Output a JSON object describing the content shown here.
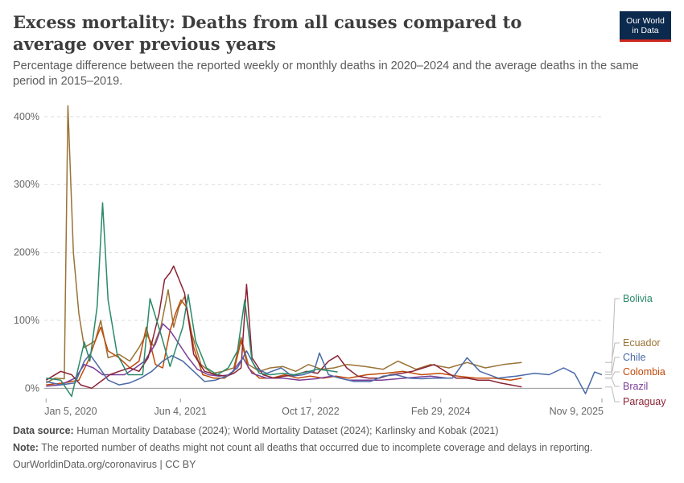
{
  "header": {
    "title": "Excess mortality: Deaths from all causes compared to average over previous years",
    "subtitle": "Percentage difference between the reported weekly or monthly deaths in 2020–2024 and the average deaths in the same period in 2015–2019.",
    "logo_line1": "Our World",
    "logo_line2": "in Data"
  },
  "footer": {
    "source_label": "Data source:",
    "source_text": "Human Mortality Database (2024); World Mortality Dataset (2024); Karlinsky and Kobak (2021)",
    "note_label": "Note:",
    "note_text": "The reported number of deaths might not count all deaths that occurred due to incomplete coverage and delays in reporting.",
    "credit": "OurWorldinData.org/coronavirus | CC BY"
  },
  "colors": {
    "Bolivia": "#2a8a6a",
    "Ecuador": "#9a7336",
    "Chile": "#4a6aa8",
    "Colombia": "#c04a08",
    "Brazil": "#7a3e99",
    "Paraguay": "#8a2234"
  },
  "chart_data": {
    "type": "line",
    "title": "Excess mortality: Deaths from all causes compared to average over previous years",
    "y_unit": "%",
    "ylim": [
      -15,
      420
    ],
    "y_ticks": [
      0,
      100,
      200,
      300,
      400
    ],
    "y_tick_labels": [
      "0%",
      "100%",
      "200%",
      "300%",
      "400%"
    ],
    "x_ticks": [
      "2020-01-05",
      "2021-06-04",
      "2022-10-17",
      "2024-02-29",
      "2025-11-09"
    ],
    "x_tick_labels": [
      "Jan 5, 2020",
      "Jun 4, 2021",
      "Oct 17, 2022",
      "Feb 29, 2024",
      "Nov 9, 2025"
    ],
    "xlim": [
      "2019-12-29",
      "2025-11-09"
    ],
    "grid": "horizontal dashed",
    "legend": "right, labels at line ends",
    "series": [
      {
        "name": "Bolivia",
        "points": [
          [
            "2020-01-05",
            15
          ],
          [
            "2020-03-01",
            12
          ],
          [
            "2020-04-12",
            -12
          ],
          [
            "2020-05-31",
            68
          ],
          [
            "2020-06-21",
            40
          ],
          [
            "2020-07-19",
            120
          ],
          [
            "2020-08-09",
            273
          ],
          [
            "2020-08-30",
            130
          ],
          [
            "2020-10-04",
            50
          ],
          [
            "2020-11-15",
            20
          ],
          [
            "2021-01-10",
            20
          ],
          [
            "2021-02-07",
            132
          ],
          [
            "2021-03-21",
            80
          ],
          [
            "2021-04-25",
            32
          ],
          [
            "2021-06-13",
            90
          ],
          [
            "2021-07-04",
            138
          ],
          [
            "2021-08-01",
            70
          ],
          [
            "2021-09-12",
            30
          ],
          [
            "2021-10-24",
            20
          ],
          [
            "2021-12-05",
            30
          ],
          [
            "2022-01-09",
            55
          ],
          [
            "2022-02-06",
            130
          ],
          [
            "2022-03-06",
            40
          ],
          [
            "2022-04-03",
            22
          ],
          [
            "2022-05-15",
            20
          ],
          [
            "2022-07-03",
            22
          ],
          [
            "2022-08-14",
            20
          ],
          [
            "2022-10-02",
            24
          ],
          [
            "2022-11-13",
            28
          ],
          [
            "2022-12-25",
            26
          ],
          [
            "2023-01-29",
            24
          ]
        ]
      },
      {
        "name": "Ecuador",
        "points": [
          [
            "2020-01-05",
            8
          ],
          [
            "2020-02-09",
            15
          ],
          [
            "2020-03-15",
            14
          ],
          [
            "2020-03-29",
            416
          ],
          [
            "2020-04-19",
            200
          ],
          [
            "2020-05-10",
            110
          ],
          [
            "2020-05-31",
            60
          ],
          [
            "2020-07-12",
            70
          ],
          [
            "2020-08-02",
            100
          ],
          [
            "2020-08-30",
            45
          ],
          [
            "2020-10-11",
            50
          ],
          [
            "2020-11-22",
            40
          ],
          [
            "2020-12-27",
            60
          ],
          [
            "2021-01-24",
            80
          ],
          [
            "2021-02-21",
            62
          ],
          [
            "2021-03-21",
            90
          ],
          [
            "2021-04-18",
            145
          ],
          [
            "2021-05-09",
            90
          ],
          [
            "2021-05-30",
            120
          ],
          [
            "2021-06-20",
            135
          ],
          [
            "2021-07-18",
            80
          ],
          [
            "2021-08-22",
            35
          ],
          [
            "2021-10-03",
            22
          ],
          [
            "2021-11-14",
            25
          ],
          [
            "2021-12-26",
            30
          ],
          [
            "2022-01-23",
            75
          ],
          [
            "2022-02-20",
            35
          ],
          [
            "2022-04-03",
            25
          ],
          [
            "2022-05-15",
            30
          ],
          [
            "2022-07-03",
            32
          ],
          [
            "2022-08-21",
            25
          ],
          [
            "2022-10-09",
            35
          ],
          [
            "2022-11-27",
            28
          ],
          [
            "2023-01-15",
            30
          ],
          [
            "2023-03-05",
            35
          ],
          [
            "2023-05-14",
            32
          ],
          [
            "2023-07-23",
            28
          ],
          [
            "2023-09-17",
            40
          ],
          [
            "2023-11-26",
            28
          ],
          [
            "2024-01-21",
            35
          ],
          [
            "2024-03-31",
            30
          ],
          [
            "2024-06-09",
            38
          ],
          [
            "2024-08-18",
            30
          ],
          [
            "2024-10-27",
            35
          ],
          [
            "2025-01-05",
            38
          ]
        ]
      },
      {
        "name": "Chile",
        "points": [
          [
            "2020-01-05",
            10
          ],
          [
            "2020-03-01",
            5
          ],
          [
            "2020-04-26",
            8
          ],
          [
            "2020-05-31",
            40
          ],
          [
            "2020-06-21",
            50
          ],
          [
            "2020-07-19",
            35
          ],
          [
            "2020-08-30",
            12
          ],
          [
            "2020-10-11",
            5
          ],
          [
            "2020-11-22",
            8
          ],
          [
            "2021-01-03",
            15
          ],
          [
            "2021-02-14",
            25
          ],
          [
            "2021-03-28",
            40
          ],
          [
            "2021-05-02",
            48
          ],
          [
            "2021-06-13",
            40
          ],
          [
            "2021-07-25",
            25
          ],
          [
            "2021-09-05",
            10
          ],
          [
            "2021-10-17",
            12
          ],
          [
            "2021-11-28",
            18
          ],
          [
            "2022-01-09",
            30
          ],
          [
            "2022-02-13",
            55
          ],
          [
            "2022-03-20",
            30
          ],
          [
            "2022-05-01",
            22
          ],
          [
            "2022-06-26",
            30
          ],
          [
            "2022-08-07",
            18
          ],
          [
            "2022-09-18",
            20
          ],
          [
            "2022-10-30",
            25
          ],
          [
            "2022-11-20",
            52
          ],
          [
            "2022-12-25",
            20
          ],
          [
            "2023-02-05",
            15
          ],
          [
            "2023-04-02",
            10
          ],
          [
            "2023-06-04",
            10
          ],
          [
            "2023-07-23",
            18
          ],
          [
            "2023-09-10",
            20
          ],
          [
            "2023-10-29",
            15
          ],
          [
            "2023-12-17",
            14
          ],
          [
            "2024-02-04",
            15
          ],
          [
            "2024-04-14",
            15
          ],
          [
            "2024-06-09",
            45
          ],
          [
            "2024-07-28",
            25
          ],
          [
            "2024-10-06",
            15
          ],
          [
            "2024-12-15",
            18
          ],
          [
            "2025-02-23",
            22
          ],
          [
            "2025-04-20",
            20
          ],
          [
            "2025-06-15",
            30
          ],
          [
            "2025-07-27",
            22
          ],
          [
            "2025-09-07",
            -8
          ],
          [
            "2025-10-12",
            24
          ],
          [
            "2025-11-09",
            20
          ]
        ]
      },
      {
        "name": "Colombia",
        "points": [
          [
            "2020-01-05",
            5
          ],
          [
            "2020-03-15",
            8
          ],
          [
            "2020-05-10",
            12
          ],
          [
            "2020-06-14",
            40
          ],
          [
            "2020-07-12",
            70
          ],
          [
            "2020-08-02",
            90
          ],
          [
            "2020-08-30",
            55
          ],
          [
            "2020-10-11",
            45
          ],
          [
            "2020-11-22",
            30
          ],
          [
            "2020-12-27",
            40
          ],
          [
            "2021-01-24",
            90
          ],
          [
            "2021-02-28",
            35
          ],
          [
            "2021-03-28",
            30
          ],
          [
            "2021-04-25",
            85
          ],
          [
            "2021-05-16",
            110
          ],
          [
            "2021-06-06",
            130
          ],
          [
            "2021-06-27",
            120
          ],
          [
            "2021-07-25",
            60
          ],
          [
            "2021-08-29",
            20
          ],
          [
            "2021-10-10",
            15
          ],
          [
            "2021-11-21",
            15
          ],
          [
            "2021-12-26",
            25
          ],
          [
            "2022-01-23",
            70
          ],
          [
            "2022-02-20",
            30
          ],
          [
            "2022-04-03",
            15
          ],
          [
            "2022-05-22",
            15
          ],
          [
            "2022-07-10",
            20
          ],
          [
            "2022-08-28",
            15
          ],
          [
            "2022-10-16",
            18
          ],
          [
            "2022-12-04",
            15
          ],
          [
            "2023-01-22",
            18
          ],
          [
            "2023-03-12",
            15
          ],
          [
            "2023-05-21",
            20
          ],
          [
            "2023-07-30",
            22
          ],
          [
            "2023-10-08",
            25
          ],
          [
            "2023-12-17",
            20
          ],
          [
            "2024-02-25",
            22
          ],
          [
            "2024-05-05",
            18
          ],
          [
            "2024-07-14",
            15
          ],
          [
            "2024-09-22",
            15
          ],
          [
            "2024-11-24",
            12
          ],
          [
            "2025-01-05",
            15
          ]
        ]
      },
      {
        "name": "Brazil",
        "points": [
          [
            "2020-01-05",
            3
          ],
          [
            "2020-03-01",
            5
          ],
          [
            "2020-04-26",
            15
          ],
          [
            "2020-05-31",
            35
          ],
          [
            "2020-07-05",
            30
          ],
          [
            "2020-08-09",
            20
          ],
          [
            "2020-09-20",
            20
          ],
          [
            "2020-11-01",
            20
          ],
          [
            "2020-12-13",
            30
          ],
          [
            "2021-01-17",
            40
          ],
          [
            "2021-02-28",
            65
          ],
          [
            "2021-03-28",
            95
          ],
          [
            "2021-04-25",
            85
          ],
          [
            "2021-05-30",
            65
          ],
          [
            "2021-07-04",
            45
          ],
          [
            "2021-08-08",
            28
          ],
          [
            "2021-09-19",
            20
          ],
          [
            "2021-10-31",
            18
          ],
          [
            "2021-12-12",
            20
          ],
          [
            "2022-01-30",
            45
          ],
          [
            "2022-03-06",
            22
          ],
          [
            "2022-05-01",
            15
          ],
          [
            "2022-07-03",
            15
          ],
          [
            "2022-09-04",
            12
          ],
          [
            "2022-11-06",
            14
          ],
          [
            "2023-01-08",
            18
          ],
          [
            "2023-03-12",
            12
          ],
          [
            "2023-05-14",
            12
          ],
          [
            "2023-07-16",
            12
          ],
          [
            "2023-09-17",
            14
          ],
          [
            "2023-11-19",
            16
          ],
          [
            "2024-01-21",
            18
          ],
          [
            "2024-03-24",
            15
          ]
        ]
      },
      {
        "name": "Paraguay",
        "points": [
          [
            "2020-01-05",
            12
          ],
          [
            "2020-03-01",
            25
          ],
          [
            "2020-04-12",
            20
          ],
          [
            "2020-05-17",
            5
          ],
          [
            "2020-06-28",
            0
          ],
          [
            "2020-08-02",
            10
          ],
          [
            "2020-09-06",
            20
          ],
          [
            "2020-10-11",
            25
          ],
          [
            "2020-11-22",
            30
          ],
          [
            "2020-12-27",
            25
          ],
          [
            "2021-01-31",
            45
          ],
          [
            "2021-03-14",
            110
          ],
          [
            "2021-04-04",
            160
          ],
          [
            "2021-04-25",
            170
          ],
          [
            "2021-05-09",
            180
          ],
          [
            "2021-05-30",
            160
          ],
          [
            "2021-06-20",
            140
          ],
          [
            "2021-07-25",
            50
          ],
          [
            "2021-09-05",
            25
          ],
          [
            "2021-10-17",
            20
          ],
          [
            "2021-11-28",
            18
          ],
          [
            "2021-12-26",
            22
          ],
          [
            "2022-01-23",
            30
          ],
          [
            "2022-02-13",
            153
          ],
          [
            "2022-03-06",
            45
          ],
          [
            "2022-04-17",
            20
          ],
          [
            "2022-05-29",
            15
          ],
          [
            "2022-07-10",
            18
          ],
          [
            "2022-08-21",
            20
          ],
          [
            "2022-10-02",
            25
          ],
          [
            "2022-11-13",
            22
          ],
          [
            "2022-12-25",
            40
          ],
          [
            "2023-01-29",
            48
          ],
          [
            "2023-03-05",
            30
          ],
          [
            "2023-04-16",
            18
          ],
          [
            "2023-05-28",
            15
          ],
          [
            "2023-07-09",
            15
          ],
          [
            "2023-08-20",
            20
          ],
          [
            "2023-10-01",
            22
          ],
          [
            "2023-11-12",
            25
          ],
          [
            "2023-12-24",
            30
          ],
          [
            "2024-02-04",
            35
          ],
          [
            "2024-03-17",
            25
          ],
          [
            "2024-04-28",
            15
          ],
          [
            "2024-06-09",
            15
          ],
          [
            "2024-07-21",
            12
          ],
          [
            "2024-09-01",
            12
          ],
          [
            "2024-10-13",
            8
          ],
          [
            "2024-11-24",
            5
          ],
          [
            "2025-01-05",
            2
          ]
        ]
      }
    ]
  }
}
